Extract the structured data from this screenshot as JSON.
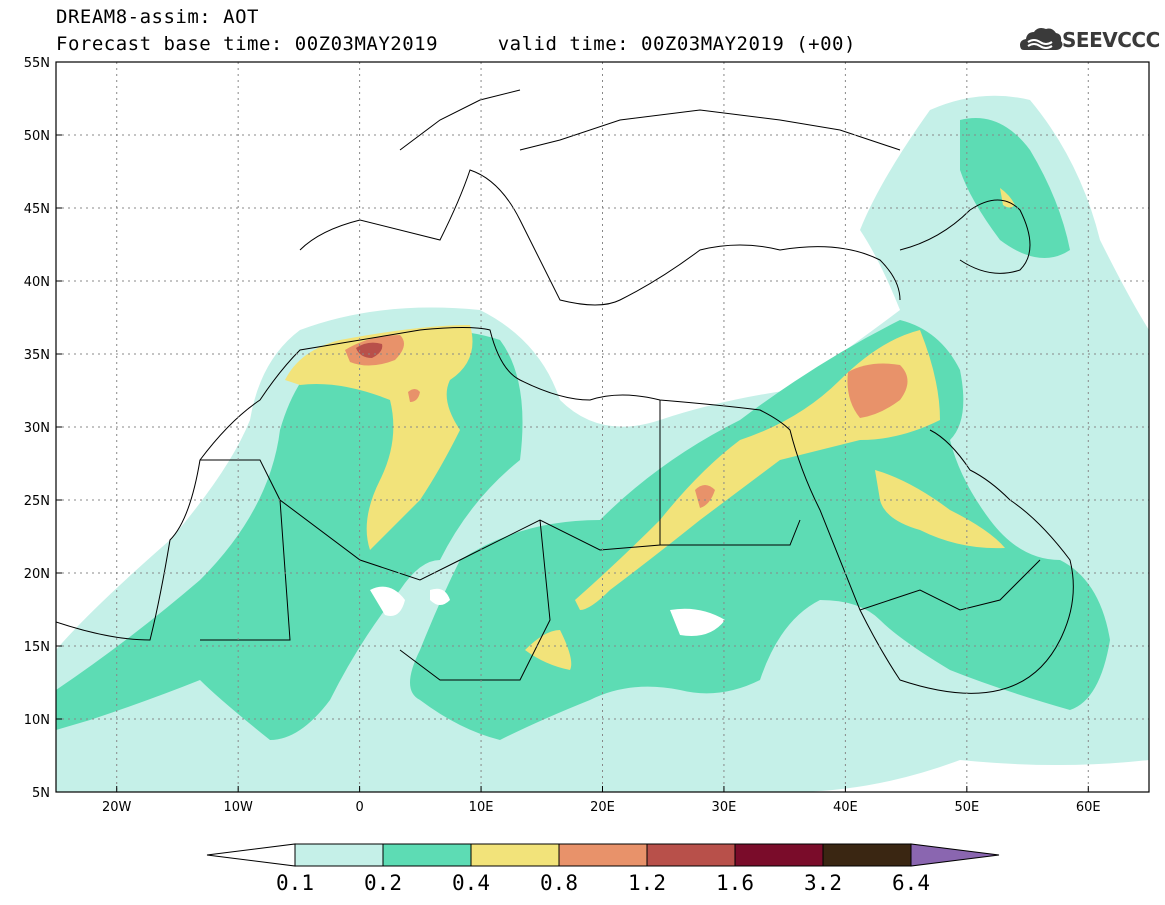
{
  "title_line1": "DREAM8-assim: AOT",
  "title_line2": "Forecast base time: 00Z03MAY2019     valid time: 00Z03MAY2019 (+00)",
  "logo_text": "SEEVCCC",
  "logo_icon": "cloud-icon",
  "map": {
    "lon_range": [
      -25,
      65
    ],
    "lat_range": [
      5,
      55
    ],
    "lat_labels": [
      "55N",
      "50N",
      "45N",
      "40N",
      "35N",
      "30N",
      "25N",
      "20N",
      "15N",
      "10N",
      "5N"
    ],
    "lon_labels": [
      "20W",
      "10W",
      "0",
      "10E",
      "20E",
      "30E",
      "40E",
      "50E",
      "60E"
    ],
    "grid": true
  },
  "colorbar": {
    "labels": [
      "0.1",
      "0.2",
      "0.4",
      "0.8",
      "1.2",
      "1.6",
      "3.2",
      "6.4"
    ],
    "colors": [
      "#ffffff",
      "#c5f0e8",
      "#5ddcb4",
      "#f2e37a",
      "#e8926a",
      "#b8504a",
      "#7a0c2a",
      "#3a2612",
      "#8a66b0"
    ]
  },
  "levels": {
    "l1": "#c5f0e8",
    "l2": "#5ddcb4",
    "l3": "#f2e37a",
    "l4": "#e8926a",
    "l5": "#b8504a"
  }
}
